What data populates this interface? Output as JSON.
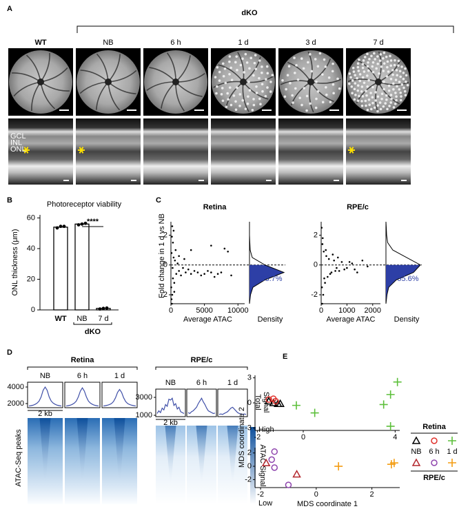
{
  "figure": {
    "panel_labels": [
      "A",
      "B",
      "C",
      "D",
      "E"
    ],
    "panel_a": {
      "group_label": "dKO",
      "columns": [
        "WT",
        "NB",
        "6 h",
        "1 d",
        "3 d",
        "7 d"
      ],
      "layer_labels": [
        "GCL",
        "INL",
        "ONL"
      ]
    },
    "panel_d": {
      "profile_label": [
        "Total",
        "Signal"
      ],
      "heatmap_ylabel": "ATAC-Seq peaks",
      "colorbar_high": "High",
      "colorbar_label": "ATAC Signal",
      "colorbar_low": "Low"
    }
  },
  "chart_data": [
    {
      "type": "bar",
      "title": "Photoreceptor viability",
      "ylabel": "ONL thickness (μm)",
      "categories": [
        "WT",
        "NB",
        "7 d"
      ],
      "values": [
        54,
        56,
        1
      ],
      "points": [
        [
          53.5,
          54.5,
          54.5
        ],
        [
          55.5,
          56,
          56.5
        ],
        [
          0.6,
          1,
          1.2
        ]
      ],
      "ylim": [
        0,
        62
      ],
      "yticks": [
        0,
        20,
        40,
        60
      ],
      "significance": "****",
      "group_label": "dKO",
      "color": "#ffffff"
    },
    {
      "type": "scatter",
      "title": "Retina",
      "xlabel": "Average ATAC",
      "ylabel": "Fold change in 1 d vs NB",
      "density_label": "Density",
      "x": [
        50,
        100,
        150,
        200,
        300,
        400,
        500,
        600,
        800,
        1000,
        1200,
        1500,
        1800,
        2200,
        2600,
        3000,
        3500,
        4000,
        4500,
        5000,
        5500,
        6000,
        6500,
        7000,
        7500,
        8000,
        9000,
        300,
        200,
        150,
        500,
        1200,
        100,
        250,
        700,
        6000,
        8500,
        2000,
        400,
        3000
      ],
      "y": [
        -1.5,
        0.8,
        -2.6,
        2.6,
        -0.9,
        0.5,
        -1.2,
        0.3,
        -0.6,
        0.1,
        -0.4,
        -0.7,
        -0.2,
        -0.5,
        -0.3,
        -0.6,
        -0.4,
        -0.5,
        -0.7,
        -0.6,
        -0.4,
        -0.5,
        -0.8,
        -0.6,
        -0.5,
        1.1,
        -0.7,
        1.5,
        -2.0,
        1.9,
        -1.8,
        0.6,
        -2.3,
        -0.2,
        1.0,
        1.3,
        0.9,
        0.4,
        2.3,
        1.0
      ],
      "xlim": [
        0,
        11000
      ],
      "xticks": [
        0,
        5000,
        10000
      ],
      "ylim": [
        -2.6,
        2.9
      ],
      "yticks": [
        -2,
        0,
        2
      ],
      "hline": 0,
      "density": {
        "y": [
          -2.6,
          -2,
          -1.5,
          -1,
          -0.5,
          0,
          0.5,
          1,
          1.5,
          2,
          2.5,
          2.9
        ],
        "values": [
          0,
          0.03,
          0.1,
          0.45,
          1,
          0.45,
          0.08,
          0.02,
          0.01,
          0,
          0,
          0
        ],
        "lim": [
          0,
          1
        ],
        "annotation": "93.7%"
      },
      "color": "#000000",
      "fill": "#2d3fa6"
    },
    {
      "type": "scatter",
      "title": "RPE/c",
      "xlabel": "Average ATAC",
      "density_label": "Density",
      "x": [
        20,
        40,
        60,
        80,
        100,
        150,
        200,
        250,
        300,
        400,
        500,
        600,
        700,
        800,
        900,
        1000,
        1200,
        1400,
        1600,
        1800,
        30,
        50,
        120,
        180,
        350,
        450,
        550,
        650,
        1100,
        1300
      ],
      "y": [
        2.5,
        -2.6,
        1.8,
        -2.0,
        0.9,
        -1.2,
        0.6,
        -0.8,
        0.4,
        -0.5,
        0.3,
        -0.2,
        -0.4,
        0.2,
        -0.3,
        -0.2,
        0.1,
        -0.5,
        0.3,
        -0.1,
        -1.5,
        1.4,
        -0.9,
        1.0,
        -0.6,
        0.7,
        -0.4,
        0.5,
        0.2,
        -0.3
      ],
      "xlim": [
        0,
        2300
      ],
      "xticks": [
        0,
        1000,
        2000
      ],
      "ylim": [
        -2.6,
        2.9
      ],
      "yticks": [
        -2,
        0,
        2
      ],
      "hline": 0,
      "density": {
        "y": [
          -2.6,
          -2,
          -1.5,
          -1,
          -0.5,
          0,
          0.5,
          1,
          1.5,
          2,
          2.5,
          2.9
        ],
        "values": [
          0,
          0.03,
          0.08,
          0.3,
          0.8,
          1.0,
          0.6,
          0.2,
          0.05,
          0.02,
          0.01,
          0
        ],
        "lim": [
          0,
          1
        ],
        "annotation": "55.6%"
      },
      "color": "#000000",
      "fill": "#2d3fa6"
    },
    {
      "type": "profile",
      "title": "Retina",
      "scale_label": "2 kb",
      "color": "#3f4fa8",
      "series": [
        {
          "name": "NB",
          "values": [
            1700,
            1750,
            1800,
            1900,
            2050,
            2300,
            2800,
            3600,
            4000,
            3600,
            2800,
            2300,
            2050,
            1900,
            1800,
            1750,
            1700
          ]
        },
        {
          "name": "6 h",
          "values": [
            1700,
            1750,
            1800,
            1900,
            2050,
            2300,
            2800,
            3500,
            3900,
            3500,
            2800,
            2300,
            2050,
            1900,
            1800,
            1750,
            1700
          ]
        },
        {
          "name": "1 d",
          "values": [
            1700,
            1750,
            1800,
            1880,
            2000,
            2250,
            2700,
            3350,
            3700,
            3350,
            2700,
            2250,
            2000,
            1880,
            1800,
            1750,
            1700
          ]
        }
      ],
      "ylim": [
        1500,
        4580
      ],
      "yticks": [
        2000,
        4000
      ]
    },
    {
      "type": "profile",
      "title": "RPE/c",
      "scale_label": "2 kb",
      "color": "#3f4fa8",
      "series": [
        {
          "name": "NB",
          "values": [
            1200,
            1500,
            1300,
            1800,
            1600,
            2200,
            2000,
            2800,
            2700,
            2900,
            2100,
            2300,
            1700,
            1900,
            1400,
            1300,
            1200
          ]
        },
        {
          "name": "6 h",
          "values": [
            1300,
            1200,
            1400,
            1500,
            1700,
            1900,
            2300,
            2600,
            2900,
            2500,
            2200,
            1800,
            1500,
            1400,
            1300,
            1200,
            1250
          ]
        },
        {
          "name": "1 d",
          "values": [
            1100,
            1150,
            1100,
            1200,
            1300,
            1400,
            1600,
            1800,
            1900,
            1700,
            1500,
            1300,
            1200,
            1150,
            1100,
            1150,
            1100
          ]
        }
      ],
      "ylim": [
        850,
        3920
      ],
      "yticks": [
        1000,
        3000
      ]
    },
    {
      "type": "mds",
      "legend_title": "Retina",
      "ylabel": "MDS coordinate 2",
      "series": [
        {
          "name": "NB",
          "marker": "triangle",
          "color": "#000000",
          "x": [
            -1.5,
            -1.3,
            -1.1,
            -1.0
          ],
          "y": [
            0.2,
            0,
            -0.1,
            -0.1
          ]
        },
        {
          "name": "6 h",
          "marker": "circle",
          "color": "#e0302a",
          "x": [
            -1.5,
            -1.3,
            -1.2
          ],
          "y": [
            0.4,
            0.5,
            0.2
          ]
        },
        {
          "name": "1 d",
          "marker": "plus",
          "color": "#5cbf3a",
          "x": [
            -0.3,
            0.5,
            3.5,
            3.8,
            4.1,
            3.8
          ],
          "y": [
            -0.3,
            -1.2,
            -0.2,
            1.0,
            2.5,
            -2.8
          ]
        }
      ],
      "xlim": [
        -2.1,
        4.2
      ],
      "xticks": [
        -2,
        0,
        4
      ],
      "ylim": [
        -3.3,
        3.3
      ],
      "yticks": [
        3,
        0,
        -3
      ]
    },
    {
      "type": "mds",
      "legend_title": "RPE/c",
      "xlabel": "MDS coordinate 1",
      "series": [
        {
          "marker": "triangle",
          "color": "#b3262c",
          "x": [
            -1.8,
            -0.7
          ],
          "y": [
            0.5,
            -1.2
          ]
        },
        {
          "marker": "circle",
          "color": "#8e44ad",
          "x": [
            -1.5,
            -1.6,
            -1.5,
            -1.0
          ],
          "y": [
            2.2,
            1.0,
            -0.2,
            -2.8
          ]
        },
        {
          "marker": "plus",
          "color": "#f39c12",
          "x": [
            0.8,
            2.7,
            2.8
          ],
          "y": [
            0.0,
            0.3,
            0.5
          ]
        }
      ],
      "xlim": [
        -2.2,
        3
      ],
      "xticks": [
        -2,
        0,
        2
      ],
      "ylim": [
        -3.2,
        2.8
      ],
      "yticks": [
        2,
        0,
        -2
      ]
    }
  ]
}
